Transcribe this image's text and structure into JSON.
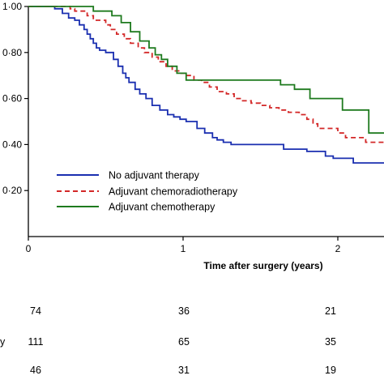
{
  "chart_data": {
    "type": "line",
    "xlabel": "Time after surgery (years)",
    "ylabel": "",
    "xlim": [
      0,
      2.35
    ],
    "ylim": [
      0,
      1.0
    ],
    "x_ticks": [
      {
        "value": 0,
        "label": "0"
      },
      {
        "value": 1,
        "label": "1"
      },
      {
        "value": 2,
        "label": "2"
      }
    ],
    "y_ticks": [
      {
        "value": 1.0,
        "label": "1·00"
      },
      {
        "value": 0.8,
        "label": "0·80"
      },
      {
        "value": 0.6,
        "label": "0·60"
      },
      {
        "value": 0.4,
        "label": "0·40"
      },
      {
        "value": 0.2,
        "label": "0·20"
      }
    ],
    "legend_position": "lower-left",
    "series": [
      {
        "name": "No adjuvant therapy",
        "color": "#1a2fb0",
        "dash": "solid",
        "x": [
          0,
          0.17,
          0.22,
          0.26,
          0.3,
          0.33,
          0.36,
          0.38,
          0.4,
          0.42,
          0.44,
          0.46,
          0.5,
          0.55,
          0.58,
          0.61,
          0.63,
          0.65,
          0.69,
          0.72,
          0.76,
          0.8,
          0.85,
          0.9,
          0.94,
          0.98,
          1.02,
          1.09,
          1.14,
          1.19,
          1.22,
          1.26,
          1.31,
          1.51,
          1.65,
          1.8,
          1.92,
          1.97,
          2.1,
          2.35
        ],
        "y": [
          1.0,
          0.99,
          0.97,
          0.95,
          0.94,
          0.92,
          0.9,
          0.88,
          0.86,
          0.84,
          0.82,
          0.81,
          0.8,
          0.77,
          0.74,
          0.71,
          0.69,
          0.67,
          0.64,
          0.62,
          0.6,
          0.57,
          0.55,
          0.53,
          0.52,
          0.51,
          0.5,
          0.47,
          0.45,
          0.43,
          0.42,
          0.41,
          0.4,
          0.4,
          0.38,
          0.37,
          0.35,
          0.34,
          0.32,
          0.32
        ]
      },
      {
        "name": "Adjuvant chemoradiotherapy",
        "color": "#d32727",
        "dash": "dashed",
        "x": [
          0,
          0.27,
          0.3,
          0.38,
          0.42,
          0.5,
          0.53,
          0.57,
          0.62,
          0.66,
          0.71,
          0.75,
          0.8,
          0.84,
          0.89,
          0.93,
          0.98,
          1.02,
          1.07,
          1.12,
          1.17,
          1.22,
          1.28,
          1.33,
          1.38,
          1.44,
          1.5,
          1.56,
          1.62,
          1.68,
          1.75,
          1.8,
          1.84,
          1.87,
          2.0,
          2.05,
          2.18,
          2.35
        ],
        "y": [
          1.0,
          0.99,
          0.98,
          0.96,
          0.94,
          0.92,
          0.9,
          0.88,
          0.86,
          0.84,
          0.82,
          0.8,
          0.78,
          0.76,
          0.74,
          0.72,
          0.71,
          0.7,
          0.68,
          0.67,
          0.65,
          0.63,
          0.62,
          0.6,
          0.59,
          0.58,
          0.57,
          0.56,
          0.55,
          0.54,
          0.53,
          0.51,
          0.49,
          0.47,
          0.45,
          0.43,
          0.41,
          0.41
        ]
      },
      {
        "name": "Adjuvant chemotherapy",
        "color": "#1e7a1e",
        "dash": "solid",
        "x": [
          0,
          0.42,
          0.54,
          0.6,
          0.66,
          0.72,
          0.78,
          0.82,
          0.86,
          0.9,
          0.96,
          1.02,
          1.5,
          1.63,
          1.72,
          1.82,
          2.0,
          2.03,
          2.2,
          2.35
        ],
        "y": [
          1.0,
          0.98,
          0.96,
          0.93,
          0.89,
          0.85,
          0.82,
          0.79,
          0.77,
          0.74,
          0.71,
          0.68,
          0.68,
          0.66,
          0.64,
          0.6,
          0.6,
          0.55,
          0.45,
          0.45
        ]
      }
    ]
  },
  "risk_table": {
    "row_labels_visible": [
      "",
      "y",
      ""
    ],
    "rows": [
      {
        "values": [
          "74",
          "36",
          "21"
        ]
      },
      {
        "values": [
          "111",
          "65",
          "35"
        ]
      },
      {
        "values": [
          "46",
          "31",
          "19"
        ]
      }
    ]
  }
}
